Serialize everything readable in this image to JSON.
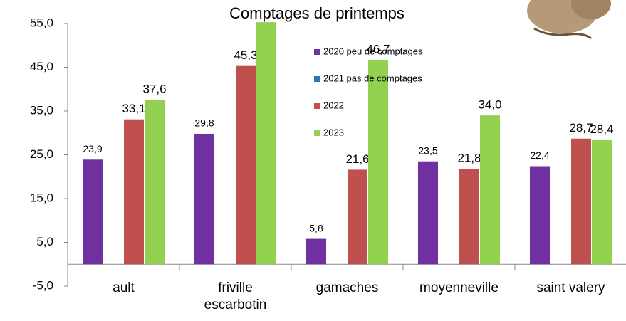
{
  "chart_data": {
    "type": "bar",
    "title": "Comptages de printemps",
    "categories": [
      "ault",
      "friville escarbotin",
      "gamaches",
      "moyenneville",
      "saint valery"
    ],
    "series": [
      {
        "name": "2020 peu de comptages",
        "color": "#7030a0",
        "values": [
          23.9,
          29.8,
          5.8,
          23.5,
          22.4
        ],
        "value_labels": [
          "23,9",
          "29,8",
          "5,8",
          "23,5",
          "22,4"
        ]
      },
      {
        "name": "2021 pas de comptages",
        "color": "#2e75b6",
        "values": [
          null,
          null,
          null,
          null,
          null
        ]
      },
      {
        "name": "2022",
        "color": "#c0504d",
        "values": [
          33.1,
          45.3,
          21.6,
          21.8,
          28.7
        ],
        "value_labels": [
          "33,1",
          "45,3",
          "21,6",
          "21,8",
          "28,7"
        ]
      },
      {
        "name": "2023",
        "color": "#92d050",
        "values": [
          37.6,
          55.3,
          46.7,
          34.0,
          28.4
        ],
        "value_labels": [
          "37,6",
          null,
          "46,7",
          "34,0",
          "28,4"
        ]
      }
    ],
    "ylim": [
      -5,
      55
    ],
    "yticks": [
      {
        "value": -5,
        "label": "-5,0"
      },
      {
        "value": 5,
        "label": "5,0"
      },
      {
        "value": 15,
        "label": "15,0"
      },
      {
        "value": 25,
        "label": "25,0"
      },
      {
        "value": 35,
        "label": "35,0"
      },
      {
        "value": 45,
        "label": "45,0"
      },
      {
        "value": 55,
        "label": "55,0"
      }
    ],
    "grid": false
  }
}
